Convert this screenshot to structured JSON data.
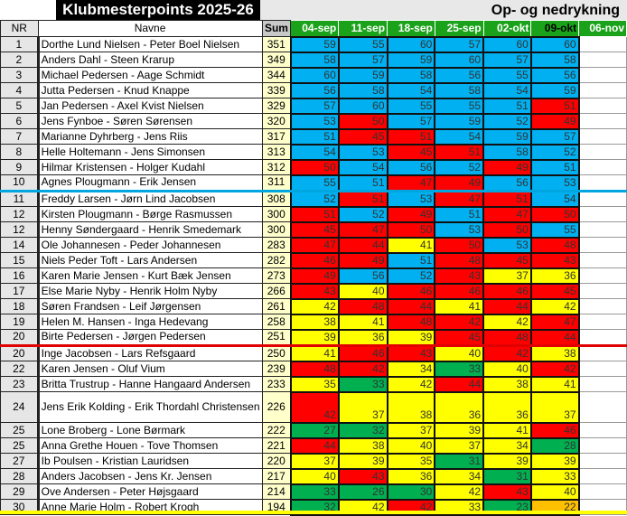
{
  "title": "Klubmesterpoints 2025-26",
  "subtitle": "Op- og nedrykning",
  "headers": {
    "nr": "NR",
    "name": "Navne",
    "sum": "Sum",
    "dates": [
      "04-sep",
      "11-sep",
      "18-sep",
      "25-sep",
      "02-okt",
      "09-okt",
      "06-nov"
    ]
  },
  "colors": {
    "B": "#00b0f0",
    "R": "#ff0000",
    "Y": "#ffff00",
    "G": "#00b050",
    "O": "#ffc000"
  },
  "rows": [
    {
      "nr": "1",
      "name": "Dorthe Lund Nielsen - Peter Boel Nielsen",
      "sum": "351",
      "scores": [
        "59",
        "55",
        "60",
        "57",
        "60",
        "60"
      ],
      "c": "BBBBBB"
    },
    {
      "nr": "2",
      "name": "Anders Dahl - Steen Krarup",
      "sum": "349",
      "scores": [
        "58",
        "57",
        "59",
        "60",
        "57",
        "58"
      ],
      "c": "BBBBBB"
    },
    {
      "nr": "3",
      "name": "Michael Pedersen - Aage Schmidt",
      "sum": "344",
      "scores": [
        "60",
        "59",
        "58",
        "56",
        "55",
        "56"
      ],
      "c": "BBBBBB"
    },
    {
      "nr": "4",
      "name": "Jutta Pedersen - Knud Knappe",
      "sum": "339",
      "scores": [
        "56",
        "58",
        "54",
        "58",
        "54",
        "59"
      ],
      "c": "BBBBBB"
    },
    {
      "nr": "5",
      "name": "Jan Pedersen - Axel Kvist Nielsen",
      "sum": "329",
      "scores": [
        "57",
        "60",
        "55",
        "55",
        "51",
        "51"
      ],
      "c": "BBBBBR"
    },
    {
      "nr": "6",
      "name": "Jens Fynboe - Søren Sørensen",
      "sum": "320",
      "scores": [
        "53",
        "50",
        "57",
        "59",
        "52",
        "49"
      ],
      "c": "BRBBBR"
    },
    {
      "nr": "7",
      "name": "Marianne Dyhrberg - Jens Riis",
      "sum": "317",
      "scores": [
        "51",
        "45",
        "51",
        "54",
        "59",
        "57"
      ],
      "c": "BRRBBB"
    },
    {
      "nr": "8",
      "name": "Helle Holtemann - Jens Simonsen",
      "sum": "313",
      "scores": [
        "54",
        "53",
        "45",
        "51",
        "58",
        "52"
      ],
      "c": "BBRRBB"
    },
    {
      "nr": "9",
      "name": "Hilmar Kristensen - Holger Kudahl",
      "sum": "312",
      "scores": [
        "50",
        "54",
        "56",
        "52",
        "49",
        "51"
      ],
      "c": "RBBBRB"
    },
    {
      "nr": "10",
      "name": "Agnes Plougmann - Erik Jensen",
      "sum": "311",
      "scores": [
        "55",
        "51",
        "47",
        "49",
        "56",
        "53"
      ],
      "c": "BBRRBB"
    },
    {
      "nr": "11",
      "name": "Freddy Larsen - Jørn Lind Jacobsen",
      "sum": "308",
      "scores": [
        "52",
        "51",
        "53",
        "47",
        "51",
        "54"
      ],
      "c": "BRBRRB"
    },
    {
      "nr": "12",
      "name": "Kirsten Plougmann - Børge Rasmussen",
      "sum": "300",
      "scores": [
        "51",
        "52",
        "49",
        "51",
        "47",
        "50"
      ],
      "c": "RBRBRR"
    },
    {
      "nr": "12",
      "name": "Henny Søndergaard - Henrik Smedemark",
      "sum": "300",
      "scores": [
        "45",
        "47",
        "50",
        "53",
        "50",
        "55"
      ],
      "c": "RRRBRB"
    },
    {
      "nr": "14",
      "name": "Ole Johannesen - Peder Johannesen",
      "sum": "283",
      "scores": [
        "47",
        "44",
        "41",
        "50",
        "53",
        "48"
      ],
      "c": "RRYRBR"
    },
    {
      "nr": "15",
      "name": "Niels Peder Toft - Lars Andersen",
      "sum": "282",
      "scores": [
        "46",
        "49",
        "51",
        "48",
        "45",
        "43"
      ],
      "c": "RRBRRR"
    },
    {
      "nr": "16",
      "name": "Karen Marie Jensen - Kurt Bæk Jensen",
      "sum": "273",
      "scores": [
        "49",
        "56",
        "52",
        "43",
        "37",
        "36"
      ],
      "c": "RBBRYY"
    },
    {
      "nr": "17",
      "name": "Else Marie Nyby - Henrik Holm Nyby",
      "sum": "266",
      "scores": [
        "43",
        "40",
        "46",
        "46",
        "46",
        "45"
      ],
      "c": "RYRRRR"
    },
    {
      "nr": "18",
      "name": "Søren Frandsen - Leif Jørgensen",
      "sum": "261",
      "scores": [
        "42",
        "48",
        "44",
        "41",
        "44",
        "42"
      ],
      "c": "YRRYRY"
    },
    {
      "nr": "19",
      "name": "Helen M. Hansen - Inga Hedevang",
      "sum": "258",
      "scores": [
        "38",
        "41",
        "48",
        "42",
        "42",
        "47"
      ],
      "c": "YYRRYR"
    },
    {
      "nr": "20",
      "name": "Birte Pedersen - Jørgen Pedersen",
      "sum": "251",
      "scores": [
        "39",
        "36",
        "39",
        "45",
        "48",
        "44"
      ],
      "c": "YYYRRR"
    },
    {
      "nr": "20",
      "name": "Inge Jacobsen - Lars Refsgaard",
      "sum": "250",
      "scores": [
        "41",
        "46",
        "43",
        "40",
        "42",
        "38"
      ],
      "c": "YRRYRY"
    },
    {
      "nr": "22",
      "name": "Karen Jensen - Oluf Vium",
      "sum": "239",
      "scores": [
        "48",
        "42",
        "34",
        "33",
        "40",
        "42"
      ],
      "c": "RRYGYR"
    },
    {
      "nr": "23",
      "name": "Britta Trustrup - Hanne Hangaard Andersen",
      "sum": "233",
      "scores": [
        "35",
        "33",
        "42",
        "44",
        "38",
        "41"
      ],
      "c": "YGYRYY"
    },
    {
      "nr": "24",
      "name": "Jens Erik Kolding - Erik Thordahl Christensen",
      "sum": "226",
      "scores": [
        "42",
        "37",
        "38",
        "36",
        "36",
        "37"
      ],
      "c": "RYYYYY"
    },
    {
      "nr": "25",
      "name": "Lone Broberg - Lone Børmark",
      "sum": "222",
      "scores": [
        "27",
        "32",
        "37",
        "39",
        "41",
        "46"
      ],
      "c": "GGYYYR"
    },
    {
      "nr": "25",
      "name": "Anna Grethe Houen - Tove Thomsen",
      "sum": "221",
      "scores": [
        "44",
        "38",
        "40",
        "37",
        "34",
        "28"
      ],
      "c": "RYYYYG"
    },
    {
      "nr": "27",
      "name": "Ib Poulsen - Kristian Lauridsen",
      "sum": "220",
      "scores": [
        "37",
        "39",
        "35",
        "31",
        "39",
        "39"
      ],
      "c": "YYYGYY"
    },
    {
      "nr": "28",
      "name": "Anders Jacobsen - Jens Kr. Jensen",
      "sum": "217",
      "scores": [
        "40",
        "43",
        "36",
        "34",
        "31",
        "33"
      ],
      "c": "YRYYGY"
    },
    {
      "nr": "29",
      "name": "Ove Andersen - Peter Højsgaard",
      "sum": "214",
      "scores": [
        "33",
        "26",
        "30",
        "42",
        "43",
        "40"
      ],
      "c": "GGGYRY"
    },
    {
      "nr": "30",
      "name": "Anne Marie Holm - Robert Krogh",
      "sum": "194",
      "scores": [
        "32",
        "42",
        "42",
        "33",
        "23",
        "22"
      ],
      "c": "GYRYGO"
    }
  ]
}
